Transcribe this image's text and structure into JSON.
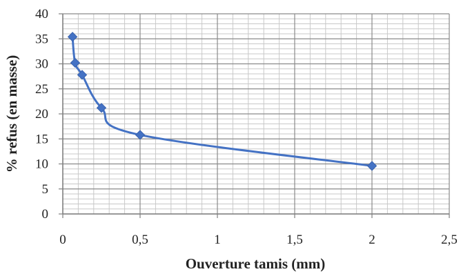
{
  "chart_data": {
    "type": "scatter",
    "xlabel": "Ouverture tamis (mm)",
    "ylabel": "% refus (en masse)",
    "xlim": [
      0,
      2.5
    ],
    "ylim": [
      0,
      40
    ],
    "x_ticks": [
      "0",
      "0,5",
      "1",
      "1,5",
      "2",
      "2,5"
    ],
    "y_ticks": [
      "0",
      "5",
      "10",
      "15",
      "20",
      "25",
      "30",
      "35",
      "40"
    ],
    "grid": true,
    "legend": "none",
    "series": [
      {
        "color": "#4472c4",
        "marker": "diamond",
        "line": "smooth",
        "points": [
          {
            "x": 0.063,
            "y": 35.4
          },
          {
            "x": 0.08,
            "y": 30.2
          },
          {
            "x": 0.125,
            "y": 27.8
          },
          {
            "x": 0.25,
            "y": 21.2
          },
          {
            "x": 0.5,
            "y": 15.8
          },
          {
            "x": 2.0,
            "y": 9.6
          }
        ]
      }
    ]
  }
}
